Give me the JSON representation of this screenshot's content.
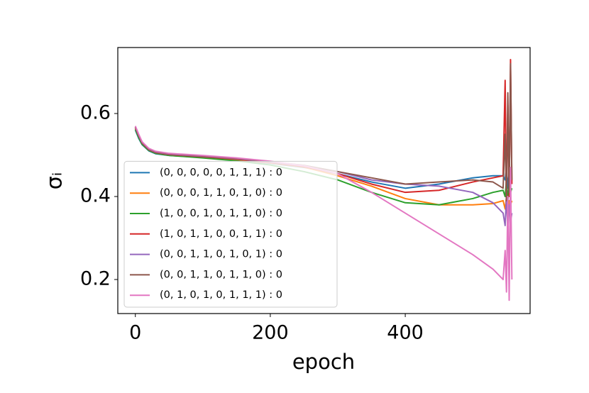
{
  "chart_data": {
    "type": "line",
    "xlabel": "epoch",
    "ylabel": "σᵢ",
    "x": [
      0,
      5,
      10,
      20,
      30,
      50,
      100,
      150,
      200,
      250,
      300,
      350,
      400,
      450,
      500,
      530,
      545,
      548,
      550,
      552,
      554,
      556,
      558
    ],
    "xlim": [
      -26,
      585
    ],
    "xticks": [
      0,
      200,
      400
    ],
    "ylim": [
      0.118,
      0.759
    ],
    "yticks": [
      0.2,
      0.4,
      0.6
    ],
    "legend": "lower left",
    "series": [
      {
        "name": "(0, 0, 0, 0, 0, 1, 1, 1) : 0",
        "color": "#1f77b4",
        "values": [
          0.56,
          0.54,
          0.525,
          0.51,
          0.503,
          0.499,
          0.494,
          0.488,
          0.48,
          0.47,
          0.455,
          0.435,
          0.42,
          0.43,
          0.445,
          0.45,
          0.45,
          0.44,
          0.47,
          0.42,
          0.46,
          0.43,
          0.44
        ]
      },
      {
        "name": "(0, 0, 0, 1, 1, 0, 1, 0) : 0",
        "color": "#ff7f0e",
        "values": [
          0.565,
          0.545,
          0.528,
          0.512,
          0.505,
          0.5,
          0.495,
          0.489,
          0.481,
          0.471,
          0.45,
          0.425,
          0.395,
          0.38,
          0.38,
          0.383,
          0.39,
          0.37,
          0.4,
          0.36,
          0.39,
          0.38,
          0.39
        ]
      },
      {
        "name": "(1, 0, 0, 1, 0, 1, 1, 0) : 0",
        "color": "#2ca02c",
        "values": [
          0.562,
          0.542,
          0.526,
          0.511,
          0.504,
          0.499,
          0.493,
          0.486,
          0.476,
          0.46,
          0.44,
          0.41,
          0.385,
          0.38,
          0.395,
          0.41,
          0.415,
          0.4,
          0.44,
          0.39,
          0.43,
          0.41,
          0.42
        ]
      },
      {
        "name": "(1, 0, 1, 1, 0, 0, 1, 1) : 0",
        "color": "#d62728",
        "values": [
          0.566,
          0.546,
          0.529,
          0.513,
          0.506,
          0.501,
          0.496,
          0.49,
          0.482,
          0.472,
          0.455,
          0.43,
          0.41,
          0.415,
          0.435,
          0.445,
          0.45,
          0.68,
          0.38,
          0.62,
          0.4,
          0.73,
          0.43
        ]
      },
      {
        "name": "(0, 0, 1, 1, 0, 1, 0, 1) : 0",
        "color": "#9467bd",
        "values": [
          0.567,
          0.547,
          0.53,
          0.514,
          0.507,
          0.502,
          0.497,
          0.491,
          0.483,
          0.474,
          0.46,
          0.44,
          0.43,
          0.425,
          0.41,
          0.385,
          0.36,
          0.33,
          0.4,
          0.32,
          0.38,
          0.34,
          0.36
        ]
      },
      {
        "name": "(0, 0, 1, 1, 0, 1, 1, 0) : 0",
        "color": "#8c564b",
        "values": [
          0.568,
          0.548,
          0.531,
          0.515,
          0.508,
          0.503,
          0.498,
          0.492,
          0.484,
          0.475,
          0.46,
          0.445,
          0.43,
          0.435,
          0.44,
          0.435,
          0.42,
          0.55,
          0.39,
          0.65,
          0.41,
          0.72,
          0.44
        ]
      },
      {
        "name": "(0, 1, 0, 1, 0, 1, 1, 1) : 0",
        "color": "#e377c2",
        "values": [
          0.57,
          0.55,
          0.532,
          0.516,
          0.509,
          0.504,
          0.499,
          0.493,
          0.485,
          0.474,
          0.455,
          0.41,
          0.36,
          0.31,
          0.26,
          0.225,
          0.2,
          0.27,
          0.17,
          0.4,
          0.15,
          0.47,
          0.2
        ]
      }
    ]
  }
}
